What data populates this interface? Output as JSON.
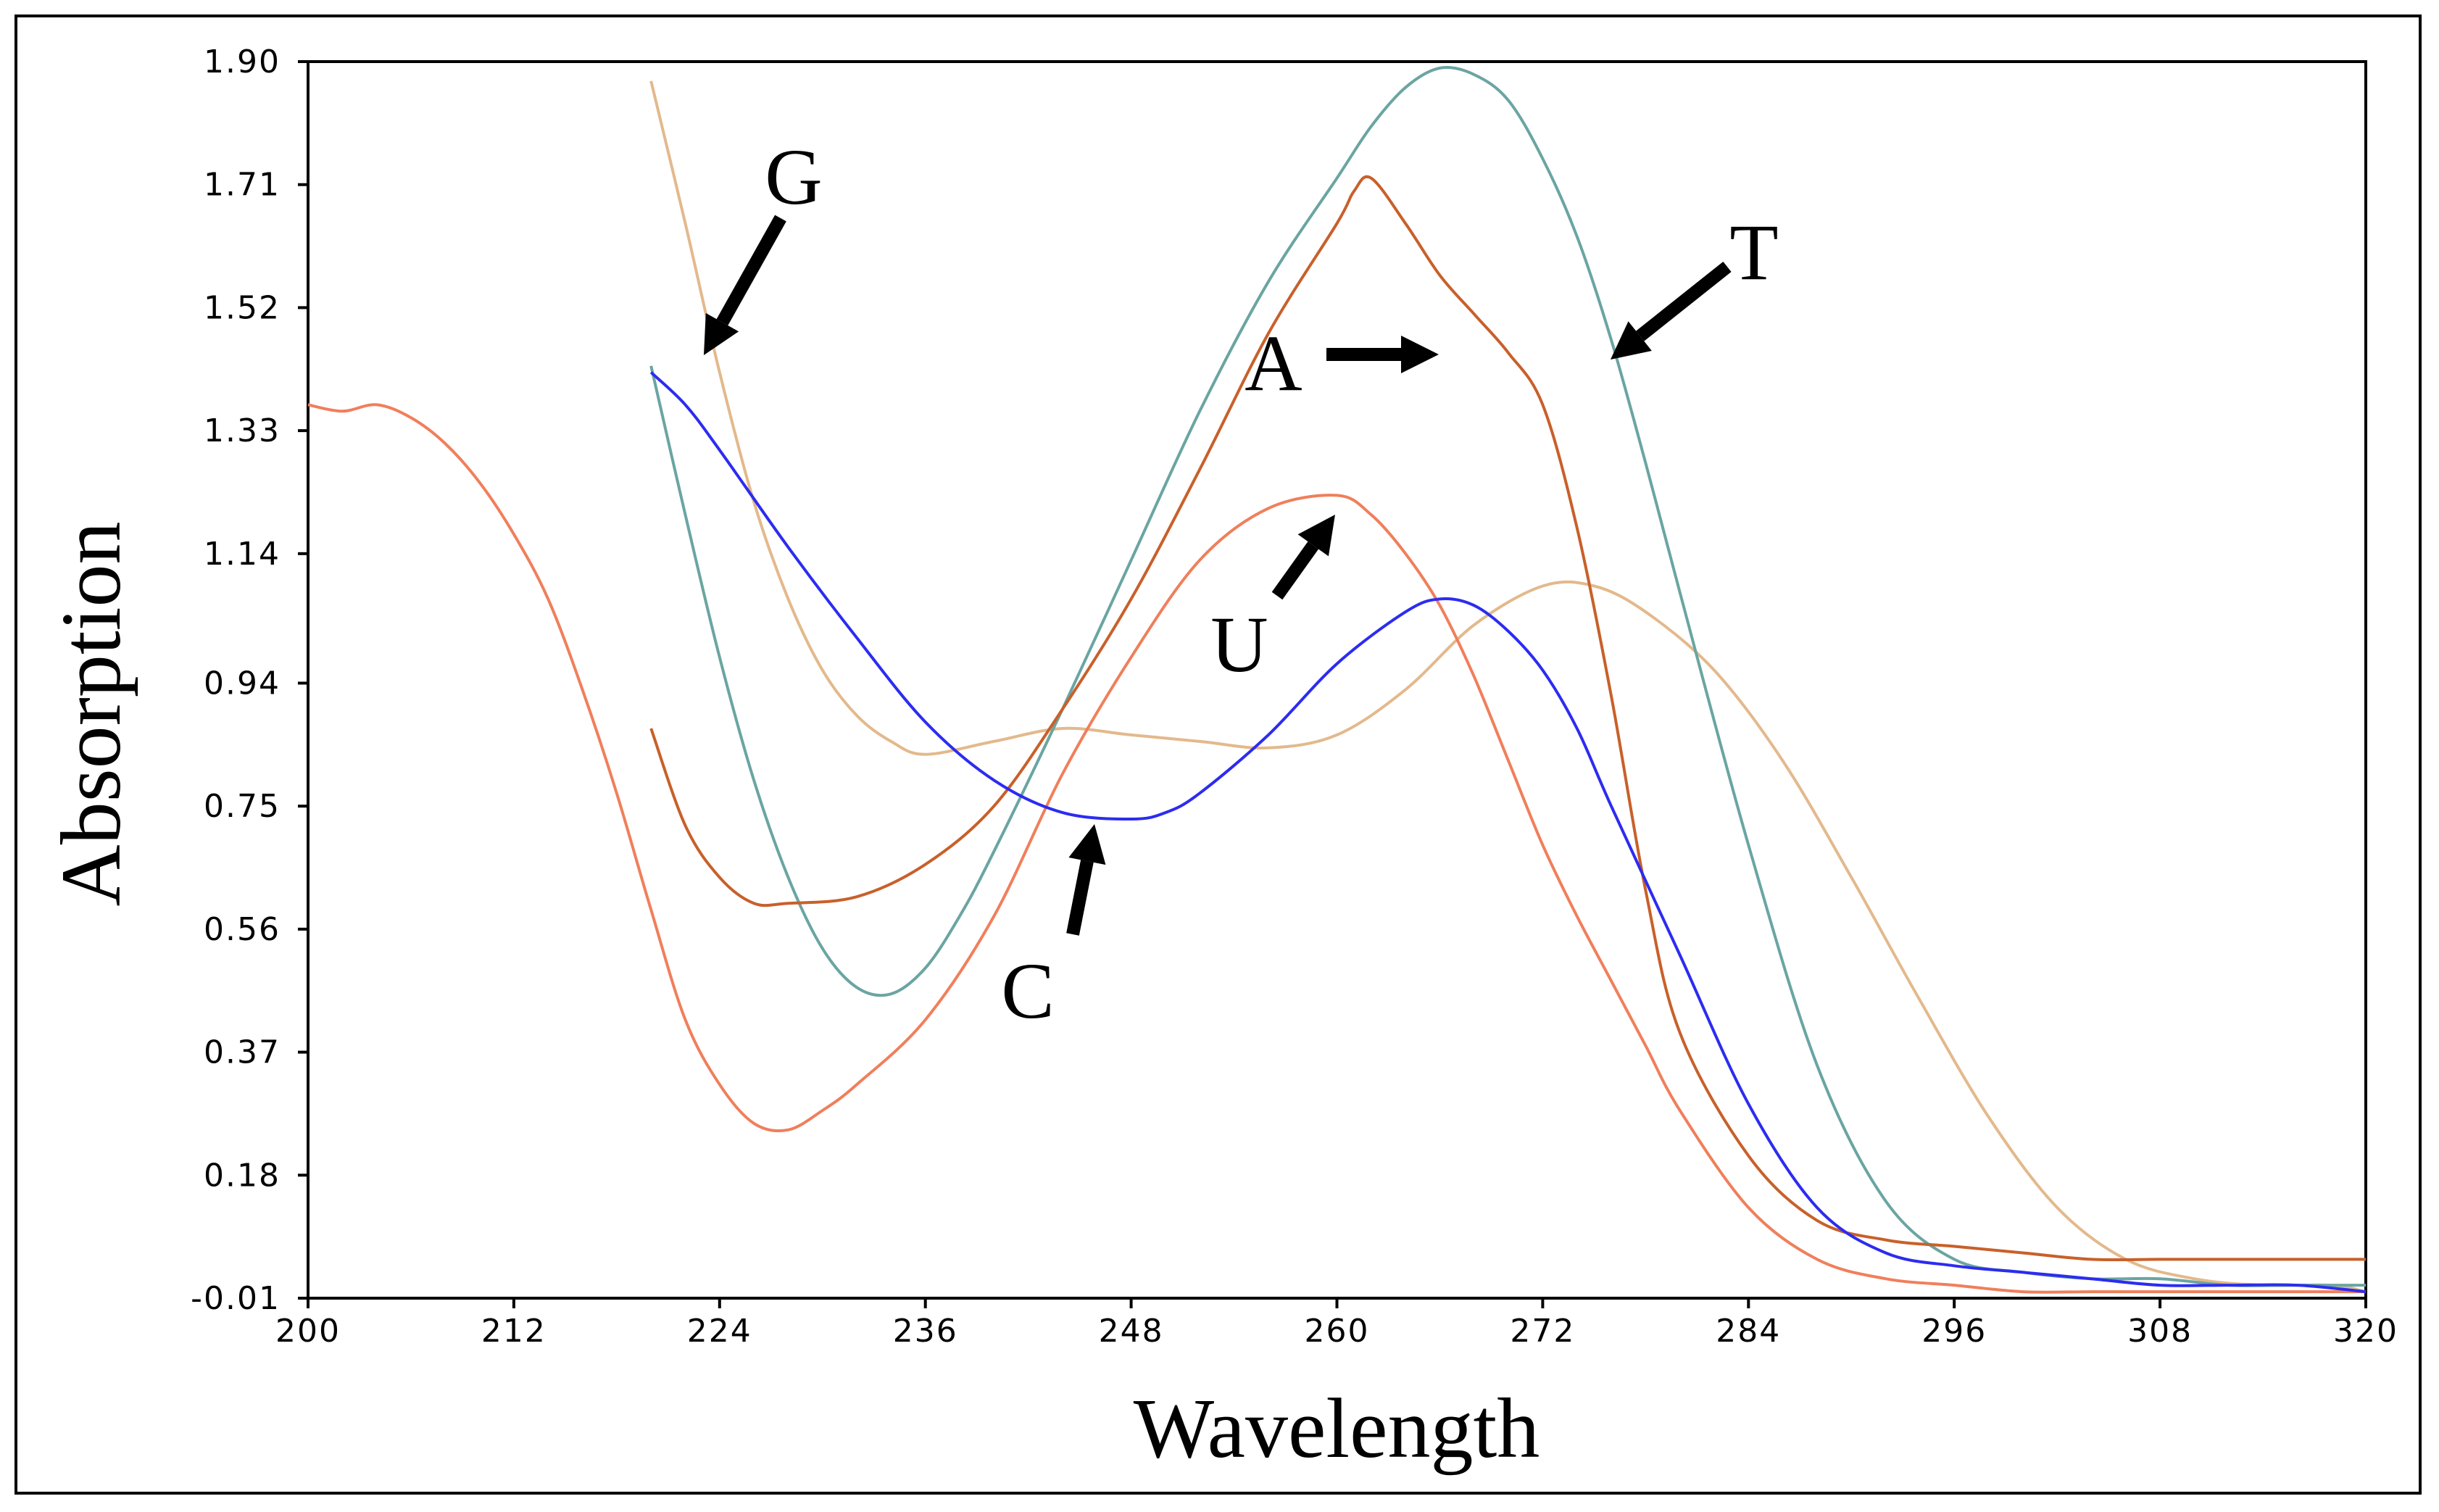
{
  "chart_data": {
    "type": "line",
    "title": "",
    "xlabel": "Wavelength",
    "ylabel": "Absorption",
    "xlim": [
      200,
      320
    ],
    "ylim": [
      -0.01,
      1.9
    ],
    "x_ticks": [
      "200",
      "212",
      "224",
      "236",
      "248",
      "260",
      "272",
      "284",
      "296",
      "308",
      "320"
    ],
    "y_ticks": [
      "1.90",
      "1.71",
      "1.52",
      "1.33",
      "1.14",
      "0.94",
      "0.75",
      "0.56",
      "0.37",
      "0.18",
      "-0.01"
    ],
    "grid": false,
    "series": [
      {
        "name": "G",
        "color": "#e3b98c",
        "x": [
          220,
          222,
          224,
          226,
          228,
          230,
          232,
          234,
          236,
          240,
          244,
          248,
          252,
          256,
          260,
          264,
          268,
          272,
          275,
          278,
          282,
          286,
          290,
          294,
          298,
          302,
          306,
          310,
          314,
          318,
          320
        ],
        "y": [
          1.87,
          1.65,
          1.42,
          1.22,
          1.07,
          0.96,
          0.89,
          0.85,
          0.83,
          0.85,
          0.87,
          0.86,
          0.85,
          0.84,
          0.86,
          0.93,
          1.03,
          1.09,
          1.09,
          1.05,
          0.96,
          0.82,
          0.64,
          0.45,
          0.27,
          0.13,
          0.05,
          0.02,
          0.01,
          0.01,
          0.0
        ]
      },
      {
        "name": "A",
        "color": "#c8602a",
        "x": [
          220,
          222,
          224,
          226,
          228,
          232,
          236,
          240,
          244,
          248,
          252,
          256,
          260,
          261,
          262,
          264,
          266,
          268,
          270,
          272,
          274,
          276,
          278,
          280,
          284,
          288,
          292,
          296,
          300,
          304,
          308,
          312,
          316,
          320
        ],
        "y": [
          0.87,
          0.72,
          0.64,
          0.6,
          0.6,
          0.61,
          0.66,
          0.75,
          0.9,
          1.07,
          1.27,
          1.48,
          1.65,
          1.7,
          1.72,
          1.65,
          1.57,
          1.51,
          1.45,
          1.37,
          1.18,
          0.92,
          0.62,
          0.4,
          0.21,
          0.11,
          0.08,
          0.07,
          0.06,
          0.05,
          0.05,
          0.05,
          0.05,
          0.05
        ]
      },
      {
        "name": "T",
        "color": "#6aa5a2",
        "x": [
          220,
          222,
          224,
          226,
          228,
          230,
          232,
          234,
          236,
          238,
          240,
          244,
          248,
          252,
          256,
          260,
          262,
          264,
          266,
          268,
          270,
          272,
          274,
          276,
          278,
          280,
          284,
          288,
          292,
          296,
          300,
          304,
          308,
          312,
          316,
          320
        ],
        "y": [
          1.43,
          1.2,
          0.98,
          0.79,
          0.64,
          0.53,
          0.47,
          0.46,
          0.5,
          0.58,
          0.68,
          0.9,
          1.13,
          1.36,
          1.56,
          1.72,
          1.8,
          1.86,
          1.89,
          1.88,
          1.84,
          1.75,
          1.63,
          1.47,
          1.28,
          1.08,
          0.69,
          0.35,
          0.14,
          0.05,
          0.03,
          0.02,
          0.02,
          0.01,
          0.01,
          0.01
        ]
      },
      {
        "name": "U",
        "color": "#f07f5b",
        "x": [
          200,
          202,
          204,
          206,
          208,
          210,
          212,
          214,
          216,
          218,
          220,
          222,
          224,
          226,
          228,
          230,
          232,
          236,
          240,
          244,
          248,
          252,
          256,
          260,
          262,
          264,
          266,
          268,
          270,
          272,
          274,
          276,
          278,
          280,
          284,
          288,
          292,
          296,
          300,
          304,
          308,
          312,
          316,
          320
        ],
        "y": [
          1.37,
          1.36,
          1.37,
          1.35,
          1.31,
          1.25,
          1.17,
          1.07,
          0.93,
          0.77,
          0.59,
          0.42,
          0.32,
          0.26,
          0.25,
          0.28,
          0.32,
          0.42,
          0.58,
          0.8,
          0.98,
          1.13,
          1.21,
          1.23,
          1.2,
          1.14,
          1.06,
          0.95,
          0.82,
          0.69,
          0.58,
          0.48,
          0.38,
          0.28,
          0.13,
          0.05,
          0.02,
          0.01,
          0.0,
          0.0,
          0.0,
          0.0,
          0.0,
          0.0
        ]
      },
      {
        "name": "C",
        "color": "#2c2cf0",
        "x": [
          220,
          222,
          224,
          228,
          232,
          236,
          240,
          244,
          248,
          250,
          252,
          256,
          260,
          264,
          266,
          268,
          270,
          272,
          274,
          276,
          280,
          284,
          288,
          292,
          296,
          300,
          304,
          308,
          312,
          316,
          320
        ],
        "y": [
          1.42,
          1.37,
          1.3,
          1.15,
          1.01,
          0.88,
          0.79,
          0.74,
          0.73,
          0.74,
          0.77,
          0.86,
          0.97,
          1.05,
          1.07,
          1.06,
          1.02,
          0.96,
          0.87,
          0.75,
          0.52,
          0.29,
          0.13,
          0.06,
          0.04,
          0.03,
          0.02,
          0.01,
          0.01,
          0.01,
          0.0
        ]
      }
    ],
    "annotations": [
      {
        "text": "G",
        "color": "#000000"
      },
      {
        "text": "A",
        "color": "#000000"
      },
      {
        "text": "T",
        "color": "#000000"
      },
      {
        "text": "U",
        "color": "#000000"
      },
      {
        "text": "C",
        "color": "#000000"
      }
    ]
  }
}
